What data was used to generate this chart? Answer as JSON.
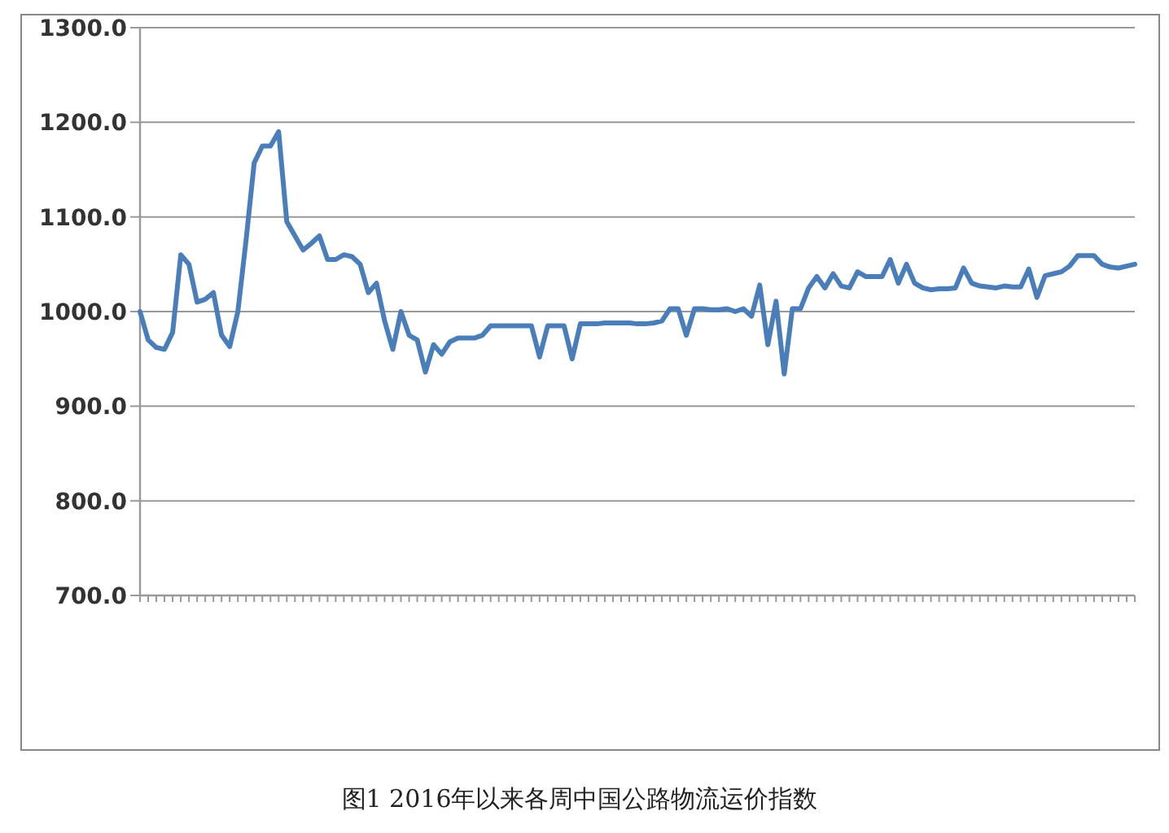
{
  "chart_data": {
    "type": "line",
    "title": "图1 2016年以来各周中国公路物流运价指数",
    "categories": [
      null,
      null,
      null,
      null,
      null,
      null,
      null,
      null,
      null,
      null,
      null,
      null,
      null,
      null,
      null,
      null,
      null,
      null,
      null,
      null,
      null,
      null,
      null,
      null,
      null,
      null,
      null,
      null,
      null,
      null,
      null,
      null,
      null,
      null,
      null,
      null,
      null,
      null,
      null,
      null,
      null,
      null,
      null,
      null,
      null,
      null,
      null,
      null,
      null,
      null,
      null,
      null,
      null,
      null,
      null,
      null,
      null,
      null,
      null,
      null,
      null,
      null,
      null,
      null,
      null,
      null,
      null,
      null,
      null,
      null,
      null,
      null,
      null,
      null,
      null,
      null,
      null,
      null,
      null,
      null,
      null,
      null,
      null,
      null,
      null,
      null,
      null,
      null,
      null,
      null,
      null,
      null,
      null,
      null,
      null,
      null,
      null,
      null,
      null,
      null,
      null,
      null,
      null,
      null,
      null,
      null,
      null,
      null,
      null,
      null,
      null,
      null,
      null,
      null,
      null,
      null,
      null,
      null,
      null,
      null,
      null,
      null,
      null
    ],
    "series": [
      {
        "color": "#4a7ebb",
        "values": [
          1000,
          970,
          962,
          960,
          978,
          1060,
          1050,
          1010,
          1013,
          1020,
          975,
          963,
          1000,
          1075,
          1157,
          1175,
          1175,
          1190,
          1095,
          1080,
          1065,
          1072,
          1080,
          1055,
          1055,
          1060,
          1058,
          1050,
          1020,
          1030,
          990,
          960,
          1000,
          975,
          970,
          936,
          965,
          955,
          968,
          972,
          972,
          972,
          975,
          985,
          985,
          985,
          985,
          985,
          985,
          952,
          985,
          985,
          985,
          950,
          987,
          987,
          987,
          988,
          988,
          988,
          988,
          987,
          987,
          988,
          990,
          1003,
          1003,
          975,
          1003,
          1003,
          1002,
          1002,
          1003,
          1000,
          1003,
          995,
          1028,
          965,
          1011,
          934,
          1003,
          1003,
          1025,
          1037,
          1025,
          1040,
          1027,
          1025,
          1042,
          1037,
          1037,
          1037,
          1055,
          1030,
          1050,
          1030,
          1025,
          1023,
          1024,
          1024,
          1025,
          1046,
          1030,
          1027,
          1026,
          1025,
          1027,
          1026,
          1026,
          1045,
          1015,
          1038,
          1040,
          1042,
          1048,
          1059,
          1059,
          1059,
          1050,
          1047,
          1046,
          1048,
          1050
        ]
      }
    ],
    "ylim": [
      700,
      1300
    ],
    "yticks": [
      {
        "value": 700,
        "label": "700.0"
      },
      {
        "value": 800,
        "label": "800.0"
      },
      {
        "value": 900,
        "label": "900.0"
      },
      {
        "value": 1000,
        "label": "1000.0"
      },
      {
        "value": 1100,
        "label": "1100.0"
      },
      {
        "value": 1200,
        "label": "1200.0"
      },
      {
        "value": 1300,
        "label": "1300.0"
      }
    ],
    "grid": "y",
    "tick_labels": "y",
    "marker": "none",
    "line_style": "solid"
  }
}
